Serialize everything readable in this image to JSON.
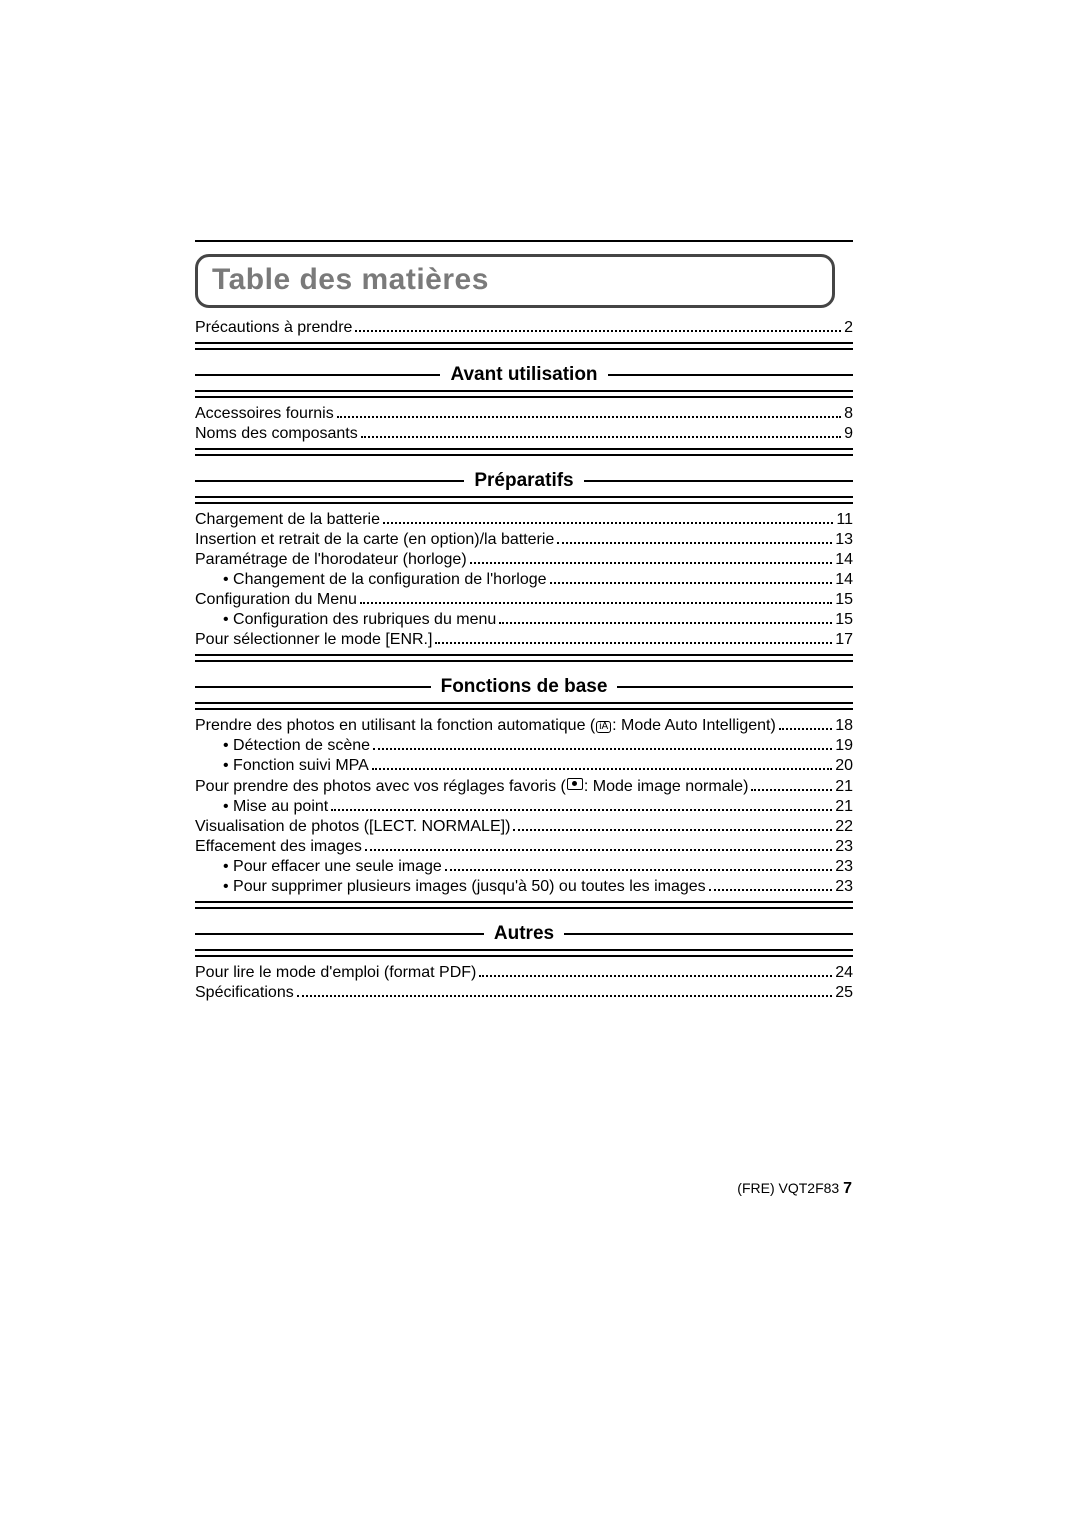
{
  "toc_title": "Table des matières",
  "top_entries": [
    {
      "label": "Précautions à prendre",
      "page": "2",
      "indent": 0
    }
  ],
  "sections": [
    {
      "heading": "Avant utilisation",
      "entries": [
        {
          "label": "Accessoires fournis",
          "page": "8",
          "indent": 0
        },
        {
          "label": "Noms des composants",
          "page": "9",
          "indent": 0
        }
      ]
    },
    {
      "heading": "Préparatifs",
      "entries": [
        {
          "label": "Chargement de la batterie",
          "page": "11",
          "indent": 0
        },
        {
          "label": "Insertion et retrait de la carte (en option)/la batterie",
          "page": "13",
          "indent": 0
        },
        {
          "label": "Paramétrage de l'horodateur (horloge)",
          "page": "14",
          "indent": 0
        },
        {
          "label": "• Changement de la configuration de l'horloge",
          "page": "14",
          "indent": 1
        },
        {
          "label": "Configuration du Menu",
          "page": "15",
          "indent": 0
        },
        {
          "label": "• Configuration des rubriques du menu",
          "page": "15",
          "indent": 1
        },
        {
          "label": "Pour sélectionner le mode [ENR.]",
          "page": "17",
          "indent": 0
        }
      ]
    },
    {
      "heading": "Fonctions de base",
      "entries": [
        {
          "label_pre": "Prendre des photos en utilisant la fonction automatique (",
          "icon": "iA",
          "label_post": ": Mode Auto Intelligent)",
          "page": "18",
          "indent": 0
        },
        {
          "label": "• Détection de scène",
          "page": "19",
          "indent": 1
        },
        {
          "label": "• Fonction suivi MPA",
          "page": "20",
          "indent": 1
        },
        {
          "label_pre": "Pour prendre des photos avec vos réglages favoris (",
          "icon": "camera",
          "label_post": ": Mode image normale)",
          "page": "21",
          "indent": 0
        },
        {
          "label": "• Mise au point",
          "page": "21",
          "indent": 1
        },
        {
          "label": "Visualisation de photos ([LECT. NORMALE])",
          "page": "22",
          "indent": 0
        },
        {
          "label": "Effacement des images",
          "page": "23",
          "indent": 0
        },
        {
          "label": "• Pour effacer une seule image",
          "page": "23",
          "indent": 1
        },
        {
          "label": "• Pour supprimer plusieurs images (jusqu'à 50) ou toutes les images",
          "page": "23",
          "indent": 1
        }
      ]
    },
    {
      "heading": "Autres",
      "entries": [
        {
          "label": "Pour lire le mode d'emploi (format PDF)",
          "page": "24",
          "indent": 0
        },
        {
          "label": "Spécifications",
          "page": "25",
          "indent": 0
        }
      ]
    }
  ],
  "footer": {
    "lang": "(FRE)",
    "doc": "VQT2F83",
    "page": "7"
  }
}
